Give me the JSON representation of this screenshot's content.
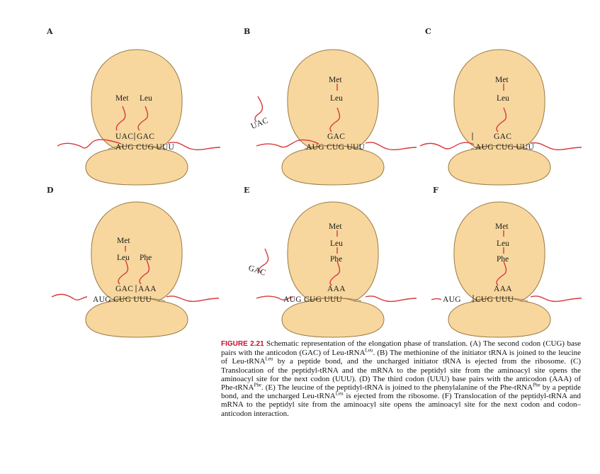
{
  "panels": [
    {
      "id": "A",
      "aa": [
        "Met",
        "Leu"
      ],
      "anticodons": [
        "UAC",
        "GAC"
      ],
      "mrna": "AUG CUG UUU",
      "ejected": ""
    },
    {
      "id": "B",
      "aa": [
        "Met",
        "Leu"
      ],
      "anticodons": [
        "GAC"
      ],
      "mrna": "AUG CUG UUU",
      "ejected": "UAC"
    },
    {
      "id": "C",
      "aa": [
        "Met",
        "Leu"
      ],
      "anticodons": [
        "GAC"
      ],
      "mrna": "AUG CUG UUU",
      "ejected": ""
    },
    {
      "id": "D",
      "aa": [
        "Met",
        "Leu",
        "Phe"
      ],
      "anticodons": [
        "GAC",
        "AAA"
      ],
      "mrna": "AUG CUG UUU",
      "ejected": ""
    },
    {
      "id": "E",
      "aa": [
        "Met",
        "Leu",
        "Phe"
      ],
      "anticodons": [
        "AAA"
      ],
      "mrna": "AUG CUG UUU",
      "ejected": "GAC"
    },
    {
      "id": "F",
      "aa": [
        "Met",
        "Leu",
        "Phe"
      ],
      "anticodons": [
        "AAA"
      ],
      "mrna_left": "AUG",
      "mrna": "CUG UUU",
      "ejected": ""
    }
  ],
  "caption": {
    "figure_label": "FIGURE 2.21",
    "p1": " Schematic representation of the elongation phase of translation. (A) The second codon (CUG) base pairs with the anticodon (GAC) of Leu-tRNA",
    "s1": "Leu",
    "p2": ". (B) The methionine of the initiator tRNA is joined to the leucine of Leu-tRNA",
    "s2": "Leu",
    "p3": " by a peptide bond, and the uncharged initiator tRNA is ejected from the ribosome. (C) Translocation of the peptidyl-tRNA and the mRNA to the peptidyl site from the aminoacyl site opens the aminoacyl site for the next codon (UUU). (D) The third codon (UUU) base pairs with the anticodon (AAA) of Phe-tRNA",
    "s3": "Phe",
    "p4": ". (E) The leucine of the peptidyl-tRNA is joined to the phenylalanine of the Phe-tRNA",
    "s4": "Phe",
    "p5": " by a peptide bond, and the uncharged Leu-tRNA",
    "s5": "Leu",
    "p6": " is ejected from the ribosome. (F) Translocation of the peptidyl-tRNA and mRNA to the peptidyl site from the aminoacyl site opens the aminoacyl site for the next codon and codon–anticodon interaction."
  }
}
